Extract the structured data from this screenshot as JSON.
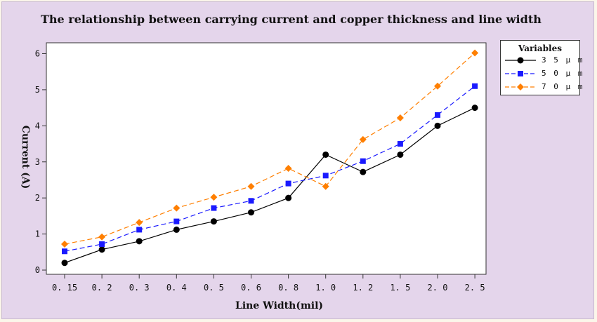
{
  "chart_data": {
    "type": "line",
    "title": "The relationship between carrying current and copper thickness and line width",
    "xlabel": "Line Width(mil)",
    "ylabel": "Current (A)",
    "categories": [
      "0. 15",
      "0. 2",
      "0. 3",
      "0. 4",
      "0. 5",
      "0. 6",
      "0. 8",
      "1. 0",
      "1. 2",
      "1. 5",
      "2. 0",
      "2. 5"
    ],
    "yticks": [
      "0",
      "1",
      "2",
      "3",
      "4",
      "5",
      "6"
    ],
    "ylim": [
      0,
      6
    ],
    "grid": false,
    "legend_title": "Variables",
    "legend_position": "top-right",
    "series": [
      {
        "name": "35μm",
        "display": "3 5 μ m",
        "color": "#000000",
        "marker": "circle",
        "dash": "solid",
        "values": [
          0.2,
          0.57,
          0.8,
          1.12,
          1.35,
          1.6,
          2.0,
          3.2,
          2.72,
          3.2,
          4.0,
          4.5
        ]
      },
      {
        "name": "50μm",
        "display": "5 0 μ m",
        "color": "#1a1aff",
        "marker": "square",
        "dash": "dashed",
        "values": [
          0.52,
          0.72,
          1.12,
          1.35,
          1.72,
          1.92,
          2.4,
          2.62,
          3.02,
          3.5,
          4.3,
          5.1
        ]
      },
      {
        "name": "70μm",
        "display": "7 0 μ m",
        "color": "#ff7f00",
        "marker": "diamond",
        "dash": "dashed",
        "values": [
          0.72,
          0.92,
          1.32,
          1.72,
          2.02,
          2.32,
          2.82,
          2.32,
          3.62,
          4.22,
          5.1,
          6.02
        ]
      }
    ]
  }
}
